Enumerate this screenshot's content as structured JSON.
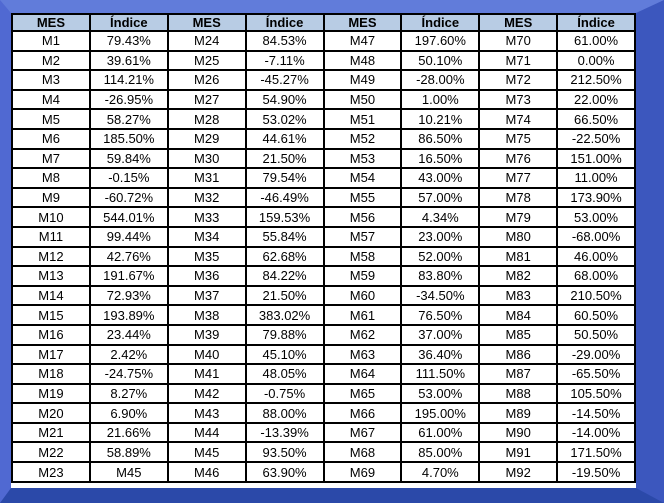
{
  "colors": {
    "frame_top": "#617CDA",
    "frame_left": "#5069D2",
    "frame_right": "#3C57BE",
    "frame_bottom": "#2B49A9",
    "header_background": "#B8CCE4",
    "grid_border": "#000000",
    "cell_background": "#FFFFFF",
    "text": "#000000"
  },
  "chart_data": {
    "type": "table",
    "header_labels": [
      "MES",
      "Índice"
    ],
    "column_pairs": 4,
    "rows_per_pair": 23,
    "groups": [
      [
        [
          "M1",
          "79.43%"
        ],
        [
          "M2",
          "39.61%"
        ],
        [
          "M3",
          "114.21%"
        ],
        [
          "M4",
          "-26.95%"
        ],
        [
          "M5",
          "58.27%"
        ],
        [
          "M6",
          "185.50%"
        ],
        [
          "M7",
          "59.84%"
        ],
        [
          "M8",
          "-0.15%"
        ],
        [
          "M9",
          "-60.72%"
        ],
        [
          "M10",
          "544.01%"
        ],
        [
          "M11",
          "99.44%"
        ],
        [
          "M12",
          "42.76%"
        ],
        [
          "M13",
          "191.67%"
        ],
        [
          "M14",
          "72.93%"
        ],
        [
          "M15",
          "193.89%"
        ],
        [
          "M16",
          "23.44%"
        ],
        [
          "M17",
          "2.42%"
        ],
        [
          "M18",
          "-24.75%"
        ],
        [
          "M19",
          "8.27%"
        ],
        [
          "M20",
          "6.90%"
        ],
        [
          "M21",
          "21.66%"
        ],
        [
          "M22",
          "58.89%"
        ],
        [
          "M23",
          "M45"
        ]
      ],
      [
        [
          "M24",
          "84.53%"
        ],
        [
          "M25",
          "-7.11%"
        ],
        [
          "M26",
          "-45.27%"
        ],
        [
          "M27",
          "54.90%"
        ],
        [
          "M28",
          "53.02%"
        ],
        [
          "M29",
          "44.61%"
        ],
        [
          "M30",
          "21.50%"
        ],
        [
          "M31",
          "79.54%"
        ],
        [
          "M32",
          "-46.49%"
        ],
        [
          "M33",
          "159.53%"
        ],
        [
          "M34",
          "55.84%"
        ],
        [
          "M35",
          "62.68%"
        ],
        [
          "M36",
          "84.22%"
        ],
        [
          "M37",
          "21.50%"
        ],
        [
          "M38",
          "383.02%"
        ],
        [
          "M39",
          "79.88%"
        ],
        [
          "M40",
          "45.10%"
        ],
        [
          "M41",
          "48.05%"
        ],
        [
          "M42",
          "-0.75%"
        ],
        [
          "M43",
          "88.00%"
        ],
        [
          "M44",
          "-13.39%"
        ],
        [
          "M45",
          "93.50%"
        ],
        [
          "M46",
          "63.90%"
        ]
      ],
      [
        [
          "M47",
          "197.60%"
        ],
        [
          "M48",
          "50.10%"
        ],
        [
          "M49",
          "-28.00%"
        ],
        [
          "M50",
          "1.00%"
        ],
        [
          "M51",
          "10.21%"
        ],
        [
          "M52",
          "86.50%"
        ],
        [
          "M53",
          "16.50%"
        ],
        [
          "M54",
          "43.00%"
        ],
        [
          "M55",
          "57.00%"
        ],
        [
          "M56",
          "4.34%"
        ],
        [
          "M57",
          "23.00%"
        ],
        [
          "M58",
          "52.00%"
        ],
        [
          "M59",
          "83.80%"
        ],
        [
          "M60",
          "-34.50%"
        ],
        [
          "M61",
          "76.50%"
        ],
        [
          "M62",
          "37.00%"
        ],
        [
          "M63",
          "36.40%"
        ],
        [
          "M64",
          "111.50%"
        ],
        [
          "M65",
          "53.00%"
        ],
        [
          "M66",
          "195.00%"
        ],
        [
          "M67",
          "61.00%"
        ],
        [
          "M68",
          "85.00%"
        ],
        [
          "M69",
          "4.70%"
        ]
      ],
      [
        [
          "M70",
          "61.00%"
        ],
        [
          "M71",
          "0.00%"
        ],
        [
          "M72",
          "212.50%"
        ],
        [
          "M73",
          "22.00%"
        ],
        [
          "M74",
          "66.50%"
        ],
        [
          "M75",
          "-22.50%"
        ],
        [
          "M76",
          "151.00%"
        ],
        [
          "M77",
          "11.00%"
        ],
        [
          "M78",
          "173.90%"
        ],
        [
          "M79",
          "53.00%"
        ],
        [
          "M80",
          "-68.00%"
        ],
        [
          "M81",
          "46.00%"
        ],
        [
          "M82",
          "68.00%"
        ],
        [
          "M83",
          "210.50%"
        ],
        [
          "M84",
          "60.50%"
        ],
        [
          "M85",
          "50.50%"
        ],
        [
          "M86",
          "-29.00%"
        ],
        [
          "M87",
          "-65.50%"
        ],
        [
          "M88",
          "105.50%"
        ],
        [
          "M89",
          "-14.50%"
        ],
        [
          "M90",
          "-14.00%"
        ],
        [
          "M91",
          "171.50%"
        ],
        [
          "M92",
          "-19.50%"
        ]
      ]
    ]
  }
}
